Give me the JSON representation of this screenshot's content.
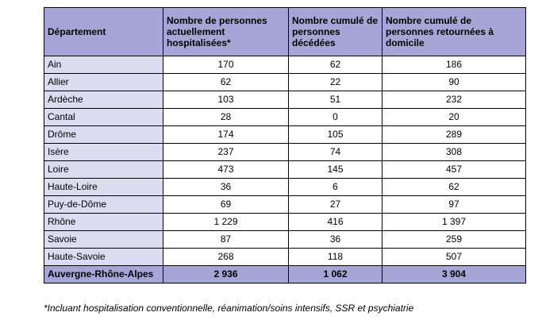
{
  "table": {
    "headers": [
      "Département",
      "Nombre de personnes actuellement hospitalisées*",
      "Nombre cumulé de personnes décédées",
      "Nombre cumulé de personnes retournées à domicile"
    ],
    "rows": [
      [
        "Ain",
        "170",
        "62",
        "186"
      ],
      [
        "Allier",
        "62",
        "22",
        "90"
      ],
      [
        "Ardèche",
        "103",
        "51",
        "232"
      ],
      [
        "Cantal",
        "28",
        "0",
        "20"
      ],
      [
        "Drôme",
        "174",
        "105",
        "289"
      ],
      [
        "Isère",
        "237",
        "74",
        "308"
      ],
      [
        "Loire",
        "473",
        "145",
        "457"
      ],
      [
        "Haute-Loire",
        "36",
        "6",
        "62"
      ],
      [
        "Puy-de-Dôme",
        "69",
        "27",
        "97"
      ],
      [
        "Rhône",
        "1 229",
        "416",
        "1 397"
      ],
      [
        "Savoie",
        "87",
        "36",
        "259"
      ],
      [
        "Haute-Savoie",
        "268",
        "118",
        "507"
      ]
    ],
    "total": [
      "Auvergne-Rhône-Alpes",
      "2 936",
      "1 062",
      "3 904"
    ]
  },
  "footnote": "*Incluant hospitalisation conventionnelle, réanimation/soins intensifs, SSR et psychiatrie",
  "colors": {
    "header_bg": "#a5a5d6",
    "first_column_bg": "#dcdcf0",
    "total_row_bg": "#a5a5d6",
    "cell_bg": "#ffffff",
    "border": "#000000"
  }
}
